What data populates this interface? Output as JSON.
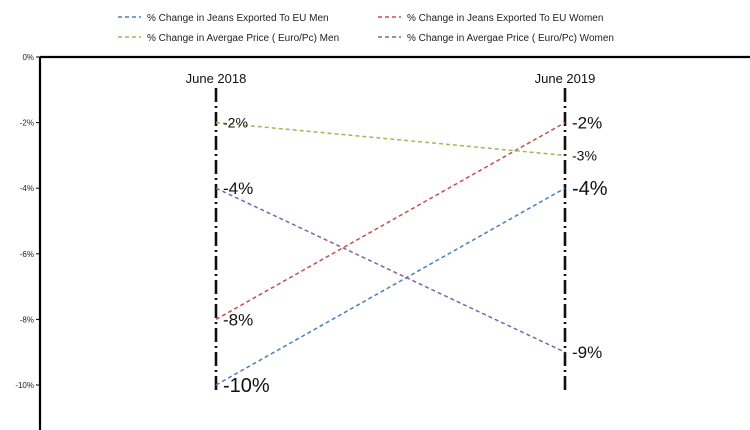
{
  "chart_data": {
    "type": "line",
    "categories": [
      "June 2018",
      "June 2019"
    ],
    "ylim": [
      -11,
      0
    ],
    "yticks": [
      "0%",
      "-2%",
      "-4%",
      "-6%",
      "-8%",
      "-10%"
    ],
    "ytick_values": [
      0,
      -2,
      -4,
      -6,
      -8,
      -10
    ],
    "grid": false,
    "legend_position": "top",
    "series": [
      {
        "name": "% Change in Jeans Exported To EU Men",
        "values": [
          -10,
          -4
        ],
        "labels": [
          "-10%",
          "-4%"
        ],
        "color": "#4a7ebb",
        "label_size": [
          20,
          20
        ]
      },
      {
        "name": "% Change in Jeans Exported To EU Women",
        "values": [
          -8,
          -2
        ],
        "labels": [
          "-8%",
          "-2%"
        ],
        "color": "#c0504d",
        "label_size": [
          17,
          17
        ]
      },
      {
        "name": "% Change in Avergae Price ( Euro/Pc) Men",
        "values": [
          -2,
          -3
        ],
        "labels": [
          "-2%",
          "-3%"
        ],
        "color": "#9bbb59",
        "label_size": [
          14,
          14
        ]
      },
      {
        "name": "% Change in Avergae Price ( Euro/Pc) Women",
        "values": [
          -4,
          -9
        ],
        "labels": [
          "-4%",
          "-9%"
        ],
        "color": "#8064a2",
        "label_size": [
          17,
          17
        ]
      }
    ]
  }
}
